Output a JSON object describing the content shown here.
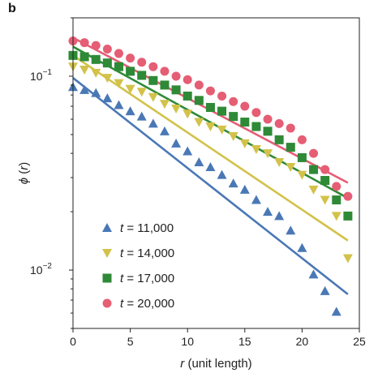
{
  "panel_label": "b",
  "chart_data": {
    "type": "scatter",
    "title": "",
    "xlabel_var": "r",
    "xlabel_rest": " (unit length)",
    "ylabel_var": "ϕ",
    "ylabel_rest": " (",
    "ylabel_arg": "r",
    "ylabel_close": ")",
    "xlim": [
      0,
      25
    ],
    "ylim": [
      0.005,
      0.2
    ],
    "yscale": "log",
    "grid": false,
    "legend_position": "bottom-left",
    "x_ticks": [
      {
        "value": 0,
        "label": "0"
      },
      {
        "value": 5,
        "label": "5"
      },
      {
        "value": 10,
        "label": "10"
      },
      {
        "value": 15,
        "label": "15"
      },
      {
        "value": 20,
        "label": "20"
      },
      {
        "value": 25,
        "label": "25"
      }
    ],
    "y_ticks": [
      {
        "value": 0.1,
        "base": "10",
        "exp": "−1"
      },
      {
        "value": 0.01,
        "base": "10",
        "exp": "−2"
      }
    ],
    "series": [
      {
        "name": "t = 11,000",
        "legend_var": "t",
        "legend_value": " = 11,000",
        "marker": "triangle-up",
        "color": "#4a78b5",
        "x": [
          0,
          1,
          2,
          3,
          4,
          5,
          6,
          7,
          8,
          9,
          10,
          11,
          12,
          13,
          14,
          15,
          16,
          17,
          18,
          19,
          20,
          21,
          22,
          23
        ],
        "y": [
          0.088,
          0.085,
          0.082,
          0.077,
          0.071,
          0.066,
          0.062,
          0.057,
          0.052,
          0.045,
          0.041,
          0.036,
          0.034,
          0.031,
          0.028,
          0.026,
          0.023,
          0.02,
          0.019,
          0.016,
          0.013,
          0.0095,
          0.0078,
          0.0061
        ],
        "fit": {
          "x": [
            0,
            24
          ],
          "y": [
            0.098,
            0.0075
          ]
        }
      },
      {
        "name": "t = 14,000",
        "legend_var": "t",
        "legend_value": " = 14,000",
        "marker": "triangle-down",
        "color": "#d2c24a",
        "x": [
          0,
          1,
          2,
          3,
          4,
          5,
          6,
          7,
          8,
          9,
          10,
          11,
          12,
          13,
          14,
          15,
          16,
          17,
          18,
          19,
          20,
          21,
          22,
          23,
          24
        ],
        "y": [
          0.112,
          0.108,
          0.104,
          0.098,
          0.092,
          0.086,
          0.083,
          0.078,
          0.072,
          0.068,
          0.064,
          0.058,
          0.055,
          0.053,
          0.049,
          0.045,
          0.042,
          0.04,
          0.036,
          0.034,
          0.031,
          0.026,
          0.023,
          0.019,
          0.0115
        ],
        "fit": {
          "x": [
            0,
            24
          ],
          "y": [
            0.128,
            0.0142
          ]
        }
      },
      {
        "name": "t = 17,000",
        "legend_var": "t",
        "legend_value": " = 17,000",
        "marker": "square",
        "color": "#2e8a36",
        "x": [
          0,
          1,
          2,
          3,
          4,
          5,
          6,
          7,
          8,
          9,
          10,
          11,
          12,
          13,
          14,
          15,
          16,
          17,
          18,
          19,
          20,
          21,
          22,
          23,
          24
        ],
        "y": [
          0.128,
          0.126,
          0.122,
          0.117,
          0.112,
          0.106,
          0.101,
          0.095,
          0.09,
          0.085,
          0.079,
          0.075,
          0.069,
          0.066,
          0.062,
          0.058,
          0.055,
          0.052,
          0.047,
          0.043,
          0.038,
          0.033,
          0.029,
          0.023,
          0.019
        ],
        "fit": {
          "x": [
            0,
            24
          ],
          "y": [
            0.142,
            0.0235
          ]
        }
      },
      {
        "name": "t = 20,000",
        "legend_var": "t",
        "legend_value": " = 20,000",
        "marker": "circle",
        "color": "#e55e74",
        "x": [
          0,
          1,
          2,
          3,
          4,
          5,
          6,
          7,
          8,
          9,
          10,
          11,
          12,
          13,
          14,
          15,
          16,
          17,
          18,
          19,
          20,
          21,
          22,
          23,
          24
        ],
        "y": [
          0.152,
          0.149,
          0.144,
          0.138,
          0.131,
          0.124,
          0.118,
          0.112,
          0.106,
          0.1,
          0.096,
          0.09,
          0.084,
          0.079,
          0.074,
          0.07,
          0.065,
          0.06,
          0.057,
          0.054,
          0.047,
          0.04,
          0.033,
          0.027,
          0.024
        ],
        "fit": {
          "x": [
            0,
            24
          ],
          "y": [
            0.158,
            0.0282
          ]
        }
      }
    ]
  }
}
